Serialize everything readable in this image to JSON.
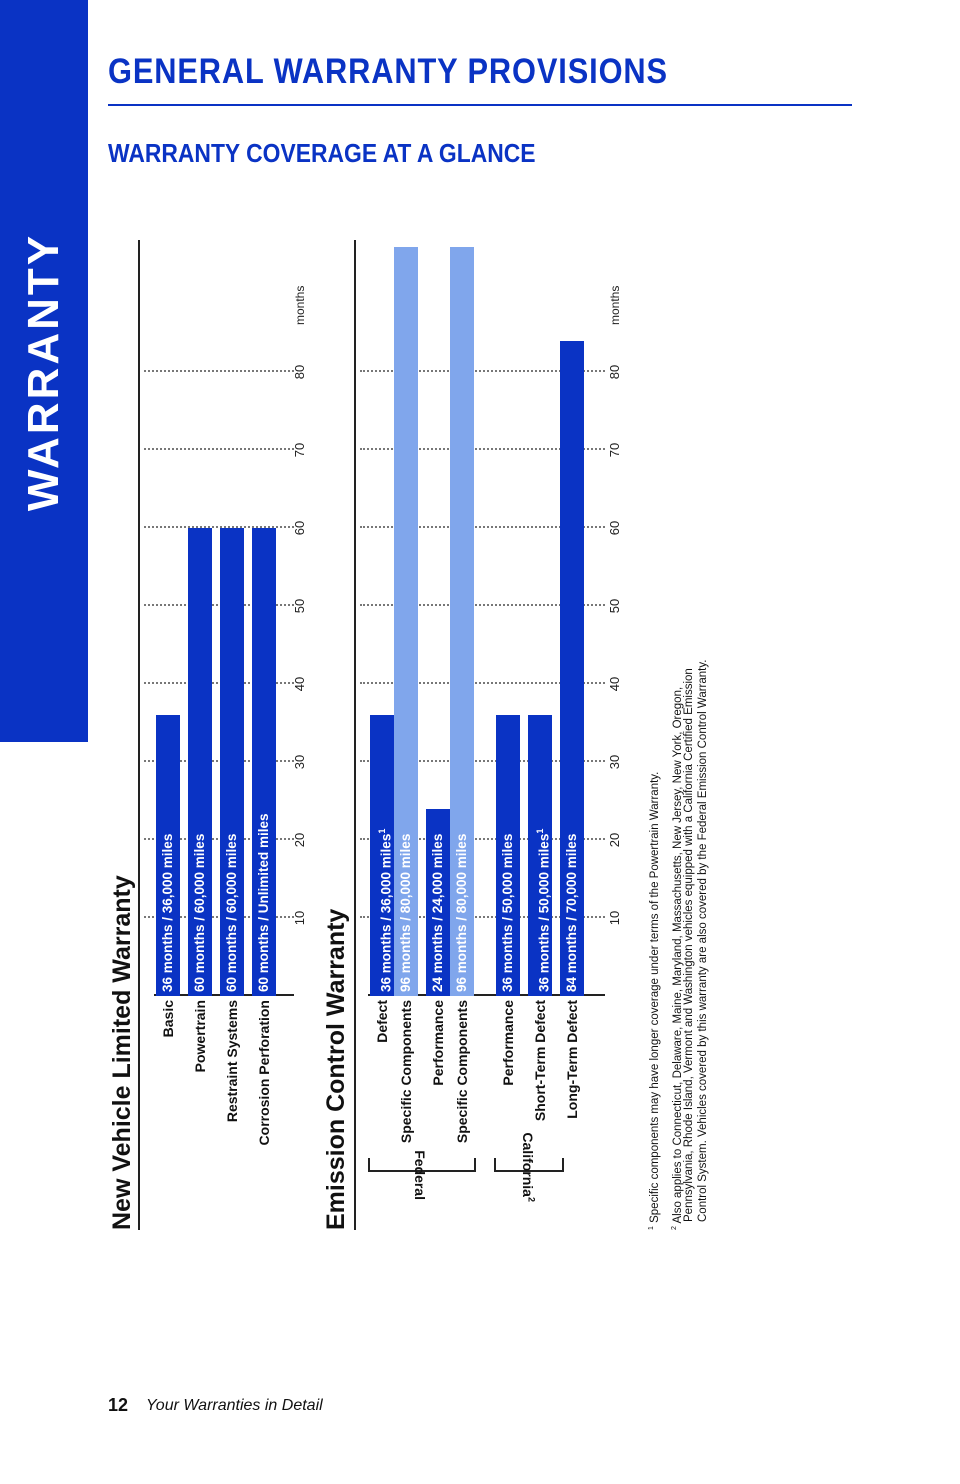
{
  "sidebar": {
    "label": "WARRANTY"
  },
  "header": {
    "title": "GENERAL WARRANTY PROVISIONS",
    "subtitle": "WARRANTY COVERAGE AT A GLANCE"
  },
  "accent_color": "#0a33c4",
  "light_color": "#80a6ec",
  "new_vehicle": {
    "title": "New Vehicle Limited Warranty",
    "rows": [
      {
        "label": "Basic",
        "coverage": "36 months  /  36,000 miles",
        "months": 36
      },
      {
        "label": "Powertrain",
        "coverage": "60 months  /  60,000 miles",
        "months": 60
      },
      {
        "label": "Restraint Systems",
        "coverage": "60 months  /  60,000 miles",
        "months": 60
      },
      {
        "label": "Corrosion Perforation",
        "coverage": "60 months  /  Unlimited miles",
        "months": 60
      }
    ]
  },
  "emission": {
    "title": "Emission Control Warranty",
    "federal_label": "Federal",
    "california_label": "California",
    "california_sup": "2",
    "rows": [
      {
        "label": "Defect",
        "coverage": "36 months  /  36,000 miles",
        "sup": "1",
        "months": 36,
        "secondary_months": 96,
        "secondary_coverage": "96 months  /  80,000 miles",
        "secondary_label": "Specific Components"
      },
      {
        "label": "Performance",
        "coverage": "24 months  /  24,000 miles",
        "sup": "",
        "months": 24,
        "secondary_months": 96,
        "secondary_coverage": "96 months  /  80,000 miles",
        "secondary_label": "Specific Components"
      },
      {
        "label": "Performance",
        "coverage": "36 months  /  50,000 miles",
        "sup": "",
        "months": 36
      },
      {
        "label": "Short-Term Defect",
        "coverage": "36 months  /  50,000 miles",
        "sup": "1",
        "months": 36
      },
      {
        "label": "Long-Term Defect",
        "coverage": "84 months  /  70,000 miles",
        "sup": "",
        "months": 84
      }
    ]
  },
  "axis": {
    "ticks": [
      "10",
      "20",
      "30",
      "40",
      "50",
      "60",
      "70",
      "80"
    ],
    "unit": "months",
    "max": 96
  },
  "footnotes": {
    "note1_mark": "1",
    "note1": "Specific components may have longer coverage under terms of the Powertrain Warranty.",
    "note2_mark": "2",
    "note2_line1": "Also applies to Connecticut, Delaware, Maine, Maryland, Massachusetts, New Jersey, New York, Oregon,",
    "note2_line2": "Pennsylvania, Rhode Island, Vermont and Washington vehicles equipped with a California Certified Emission",
    "note2_line3": "Control System. Vehicles covered by this warranty are also covered by the Federal Emission Control Warranty."
  },
  "footer": {
    "page_number": "12",
    "caption": "Your Warranties in Detail"
  }
}
